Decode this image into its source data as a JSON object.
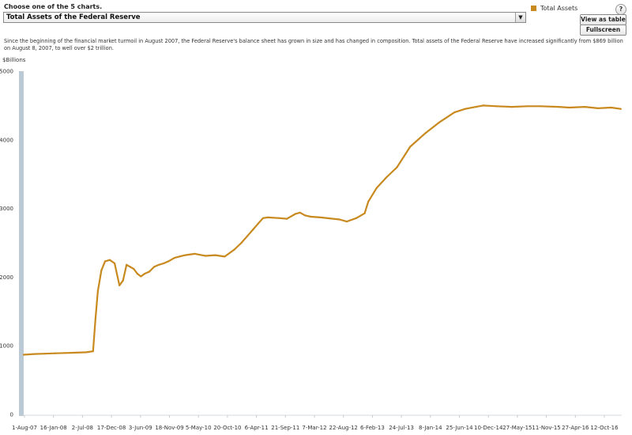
{
  "header": {
    "choose_label": "Choose one of the 5 charts.",
    "selected_chart": "Total Assets of the Federal Reserve",
    "view_table_label": "View as table",
    "fullscreen_label": "Fullscreen",
    "help_label": "?"
  },
  "description": "Since the beginning of the financial market turmoil in August 2007, the Federal Reserve's balance sheet has grown in size and has changed in composition. Total assets of the Federal Reserve have increased significantly from $869 billion on August 8, 2007, to well over $2 trillion.",
  "colors": {
    "series": "#c8891e",
    "y_axis_bar": "#bccad6",
    "axis_text": "#333333"
  },
  "chart_data": {
    "type": "line",
    "title": "",
    "xlabel": "",
    "ylabel": "$Billions",
    "ylim": [
      0,
      5000
    ],
    "yticks": [
      0,
      1000,
      2000,
      3000,
      4000,
      5000
    ],
    "xlim": [
      "2007-08-01",
      "2017-02-28"
    ],
    "xtick_labels": [
      "1-Aug-07",
      "16-Jan-08",
      "2-Jul-08",
      "17-Dec-08",
      "3-Jun-09",
      "18-Nov-09",
      "5-May-10",
      "20-Oct-10",
      "6-Apr-11",
      "21-Sep-11",
      "7-Mar-12",
      "22-Aug-12",
      "6-Feb-13",
      "24-Jul-13",
      "8-Jan-14",
      "25-Jun-14",
      "10-Dec-14",
      "27-May-15",
      "11-Nov-15",
      "27-Apr-16",
      "12-Oct-16"
    ],
    "grid": false,
    "legend": "top-right",
    "series": [
      {
        "name": "Total Assets",
        "x": [
          "2007-08-01",
          "2007-10-01",
          "2007-12-01",
          "2008-02-01",
          "2008-04-01",
          "2008-06-01",
          "2008-08-01",
          "2008-09-10",
          "2008-09-24",
          "2008-10-08",
          "2008-10-29",
          "2008-11-19",
          "2008-12-17",
          "2009-01-14",
          "2009-02-11",
          "2009-03-04",
          "2009-03-25",
          "2009-04-15",
          "2009-05-06",
          "2009-05-27",
          "2009-06-17",
          "2009-07-08",
          "2009-08-05",
          "2009-09-02",
          "2009-09-30",
          "2009-10-28",
          "2009-11-25",
          "2009-12-30",
          "2010-01-27",
          "2010-03-03",
          "2010-04-28",
          "2010-06-30",
          "2010-08-25",
          "2010-10-20",
          "2010-12-15",
          "2011-01-26",
          "2011-03-02",
          "2011-04-06",
          "2011-05-04",
          "2011-06-01",
          "2011-06-29",
          "2011-09-07",
          "2011-10-19",
          "2011-12-07",
          "2012-01-04",
          "2012-02-01",
          "2012-03-07",
          "2012-05-02",
          "2012-08-22",
          "2012-10-03",
          "2012-11-28",
          "2013-01-16",
          "2013-02-06",
          "2013-03-27",
          "2013-05-22",
          "2013-07-24",
          "2013-10-09",
          "2014-01-08",
          "2014-03-26",
          "2014-06-25",
          "2014-08-27",
          "2014-10-29",
          "2014-12-10",
          "2015-02-25",
          "2015-05-27",
          "2015-08-26",
          "2015-11-11",
          "2016-02-24",
          "2016-04-27",
          "2016-07-27",
          "2016-10-12",
          "2016-12-28",
          "2017-02-22"
        ],
        "values": [
          870,
          880,
          885,
          890,
          895,
          900,
          905,
          920,
          1400,
          1800,
          2100,
          2230,
          2250,
          2200,
          1880,
          1950,
          2180,
          2150,
          2120,
          2050,
          2010,
          2050,
          2080,
          2150,
          2180,
          2200,
          2230,
          2280,
          2300,
          2320,
          2340,
          2310,
          2320,
          2300,
          2400,
          2500,
          2600,
          2700,
          2780,
          2860,
          2870,
          2860,
          2850,
          2920,
          2940,
          2900,
          2880,
          2870,
          2840,
          2810,
          2860,
          2930,
          3100,
          3300,
          3450,
          3600,
          3900,
          4100,
          4250,
          4400,
          4450,
          4480,
          4500,
          4490,
          4480,
          4490,
          4490,
          4480,
          4470,
          4480,
          4460,
          4470,
          4450
        ]
      }
    ]
  }
}
